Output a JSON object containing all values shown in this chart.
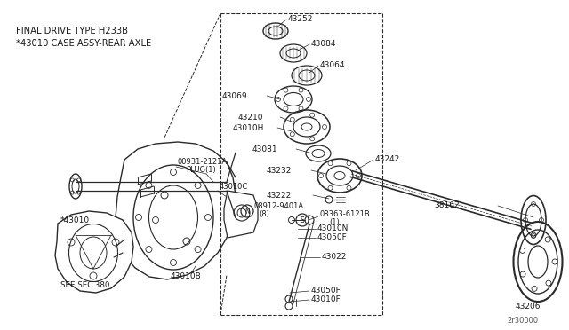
{
  "bg_color": "#ffffff",
  "line_color": "#2a2a2a",
  "text_color": "#1a1a1a",
  "title_line1": "FINAL DRIVE TYPE H233B",
  "title_line2": "*43010 CASE ASSY-REAR AXLE",
  "footer": "2r30000",
  "figsize": [
    6.4,
    3.72
  ],
  "dpi": 100
}
